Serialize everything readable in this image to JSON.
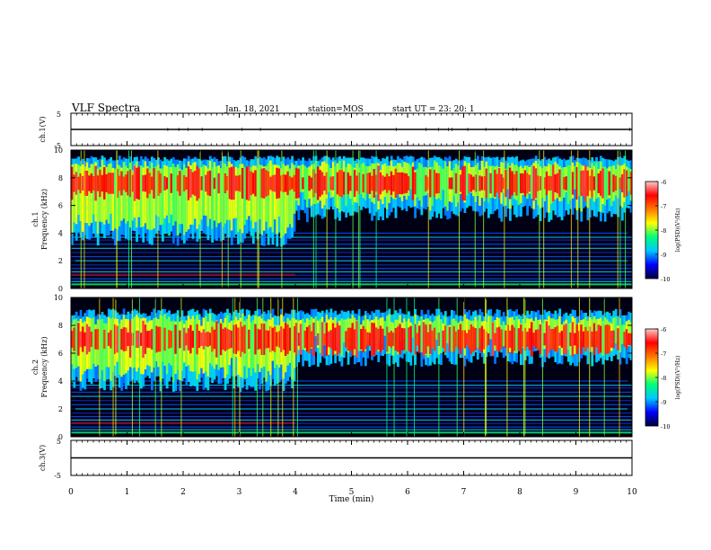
{
  "header": {
    "title": "VLF Spectra",
    "date": "Jan. 18, 2021",
    "station": "station=MOS",
    "start": "start UT =  23: 20: 1"
  },
  "chart_data": [
    {
      "type": "line",
      "name_label": "ch.1(V)",
      "ylabel": "ch.1(V)",
      "ylim": [
        -5,
        5
      ],
      "y_ticks": [
        "5",
        "-5"
      ],
      "x": [
        0,
        10
      ],
      "values": [
        0,
        0
      ],
      "xlim": [
        0,
        10
      ]
    },
    {
      "type": "heatmap",
      "ylabel": "ch.1\nFrequency (kHz)",
      "ylabel_lines": [
        "ch.1",
        "Frequency (kHz)"
      ],
      "y_ticks": [
        "0",
        "2",
        "4",
        "6",
        "8",
        "10"
      ],
      "ylim": [
        0,
        10
      ],
      "xlim": [
        0,
        10
      ],
      "colorbar": {
        "label": "log(PSD)(V²/Hz)",
        "ticks": [
          "-6",
          "-7",
          "-8",
          "-9",
          "-10"
        ],
        "range": [
          -10,
          -6
        ]
      }
    },
    {
      "type": "heatmap",
      "ylabel": "ch.2\nFrequency (kHz)",
      "ylabel_lines": [
        "ch.2",
        "Frequency (kHz)"
      ],
      "y_ticks": [
        "0",
        "2",
        "4",
        "6",
        "8",
        "10"
      ],
      "ylim": [
        0,
        10
      ],
      "xlim": [
        0,
        10
      ],
      "colorbar": {
        "label": "log(PSD)(V²/Hz)",
        "ticks": [
          "-6",
          "-7",
          "-8",
          "-9",
          "-10"
        ],
        "range": [
          -10,
          -6
        ]
      }
    },
    {
      "type": "line",
      "ylabel": "ch.3(V)",
      "ylim": [
        -5,
        5
      ],
      "y_ticks": [
        "5",
        "-5"
      ],
      "x": [
        0,
        10
      ],
      "values": [
        0,
        0
      ],
      "xlim": [
        0,
        10
      ]
    }
  ],
  "xaxis": {
    "label": "Time (min)",
    "ticks": [
      "0",
      "1",
      "2",
      "3",
      "4",
      "5",
      "6",
      "7",
      "8",
      "9",
      "10"
    ]
  },
  "colors": {
    "colormap": [
      "#00003c",
      "#0000ff",
      "#00c8ff",
      "#00ff78",
      "#ffff00",
      "#ff7800",
      "#ff0000",
      "#ffc8c8"
    ]
  }
}
